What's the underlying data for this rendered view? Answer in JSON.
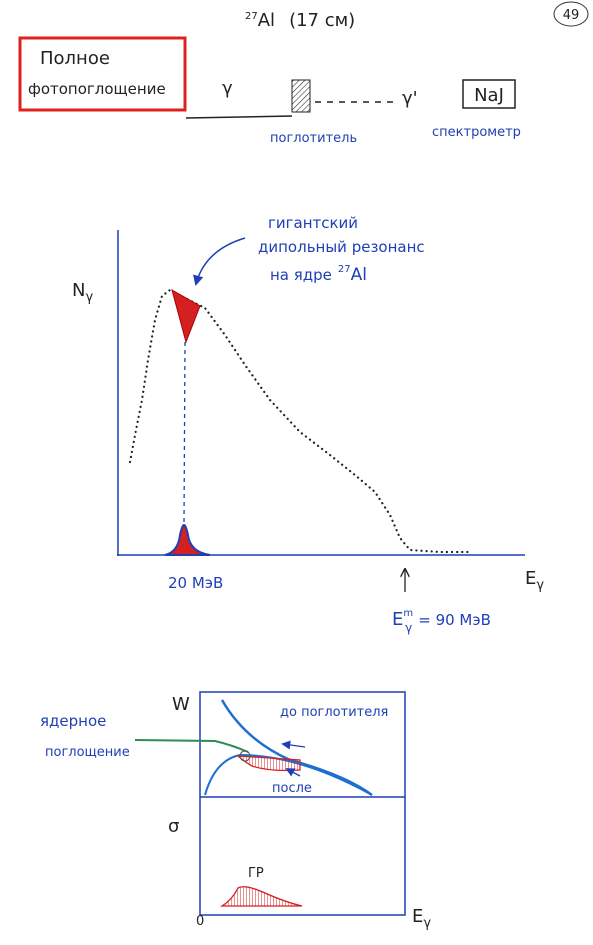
{
  "header": {
    "page_number": "49",
    "isotope_mass": "27",
    "isotope_symbol": "Al",
    "thickness": "(17 см)"
  },
  "setup": {
    "box_label_lines": [
      "Полное",
      "фотопоглощение"
    ],
    "gamma_in": "γ",
    "gamma_out": "γ'",
    "detector": "NaJ",
    "absorber_label": "поглотитель",
    "spectrometer_label": "спектрометр"
  },
  "spectrum": {
    "annotation_lines": [
      "гигантский",
      "дипольный резонанс",
      "на ядре"
    ],
    "annotation_mass": "27",
    "annotation_symbol": "Al",
    "y_label": "N",
    "y_label_sub": "γ",
    "x_label": "E",
    "x_label_sub": "γ",
    "peak_label": "20 МэВ",
    "endpoint_symbol": "E",
    "endpoint_sup": "m",
    "endpoint_sub": "γ",
    "endpoint_value": "= 90 МэВ"
  },
  "cross_section": {
    "w_label": "W",
    "sigma_label": "σ",
    "origin_label": "0",
    "x_label": "E",
    "x_label_sub": "γ",
    "before_label": "до поглотителя",
    "after_label": "после",
    "nuclear_lines": [
      "ядерное",
      "поглощение"
    ],
    "gdr_label": "ГР"
  }
}
